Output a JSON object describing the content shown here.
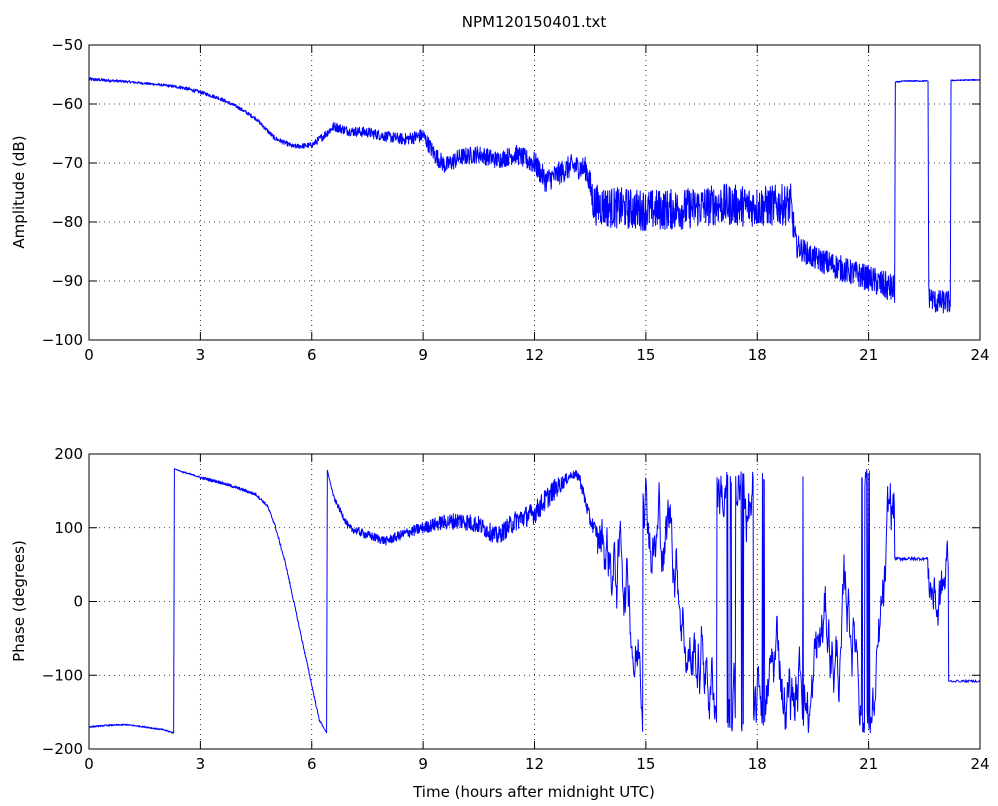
{
  "figure": {
    "title": "NPM120150401.txt",
    "line_color": "#0000ff",
    "axes_color": "#000000",
    "background": "#ffffff"
  },
  "chart_data": [
    {
      "type": "line",
      "title": "NPM120150401.txt",
      "xlabel": "",
      "ylabel": "Amplitude (dB)",
      "xlim": [
        0,
        24
      ],
      "ylim": [
        -100,
        -50
      ],
      "xticks": [
        0,
        3,
        6,
        9,
        12,
        15,
        18,
        21,
        24
      ],
      "yticks": [
        -100,
        -90,
        -80,
        -70,
        -60,
        -50
      ],
      "xtick_labels": [
        "0",
        "3",
        "6",
        "9",
        "12",
        "15",
        "18",
        "21",
        "24"
      ],
      "ytick_labels": [
        "−100",
        "−90",
        "−80",
        "−70",
        "−60",
        "−50"
      ],
      "grid": true,
      "series": [
        {
          "color": "#0000ff",
          "x": [
            0,
            1,
            2,
            2.5,
            3,
            3.5,
            4,
            4.5,
            5,
            5.5,
            6,
            6.3,
            6.6,
            7,
            7.5,
            8,
            8.5,
            9,
            9.3,
            9.6,
            10,
            10.5,
            11,
            11.5,
            11.8,
            12,
            12.3,
            12.6,
            13,
            13.4,
            13.6,
            14,
            15,
            16,
            17,
            18,
            18.9,
            19.05,
            19.5,
            20,
            20.5,
            21,
            21.3,
            21.7,
            21.72,
            21.85,
            22,
            22.6,
            22.62,
            22.8,
            23.2,
            23.22,
            24
          ],
          "y": [
            -55.8,
            -56.2,
            -56.8,
            -57.2,
            -58,
            -59,
            -60.5,
            -62.5,
            -65.8,
            -67.2,
            -67,
            -65.5,
            -63.8,
            -64.6,
            -64.8,
            -65.5,
            -66,
            -65.3,
            -68.5,
            -70.5,
            -69,
            -68.5,
            -69.5,
            -68.5,
            -69.5,
            -70,
            -73,
            -72,
            -70.5,
            -71,
            -77,
            -77.5,
            -78,
            -77.8,
            -77,
            -77.4,
            -77,
            -84,
            -86,
            -87.2,
            -88.5,
            -89.5,
            -90.5,
            -91.5,
            -56.3,
            -56.2,
            -56.1,
            -56.1,
            -92.5,
            -93.5,
            -93.6,
            -56,
            -55.9
          ],
          "noise": [
            0.3,
            0.2,
            0.2,
            0.3,
            0.3,
            0.3,
            0.3,
            0.3,
            0.4,
            0.4,
            0.5,
            0.7,
            0.8,
            0.8,
            0.9,
            0.9,
            1,
            1.2,
            1.5,
            1.5,
            1.5,
            1.5,
            1.5,
            1.6,
            1.8,
            2,
            2,
            2,
            2,
            2,
            3.5,
            3.5,
            3.5,
            3.5,
            3.5,
            3.5,
            3.5,
            2,
            2,
            2.2,
            2.2,
            2.2,
            2.5,
            2.5,
            0.1,
            0.1,
            0.1,
            0.1,
            2,
            2,
            2,
            0.1,
            0.1
          ]
        }
      ]
    },
    {
      "type": "line",
      "title": "",
      "xlabel": "Time (hours after midnight UTC)",
      "ylabel": "Phase (degrees)",
      "xlim": [
        0,
        24
      ],
      "ylim": [
        -200,
        200
      ],
      "xticks": [
        0,
        3,
        6,
        9,
        12,
        15,
        18,
        21,
        24
      ],
      "yticks": [
        -200,
        -100,
        0,
        100,
        200
      ],
      "xtick_labels": [
        "0",
        "3",
        "6",
        "9",
        "12",
        "15",
        "18",
        "21",
        "24"
      ],
      "ytick_labels": [
        "−200",
        "−100",
        "0",
        "100",
        "200"
      ],
      "grid": true,
      "series": [
        {
          "color": "#0000ff",
          "x": [
            0,
            0.5,
            1,
            1.5,
            2,
            2.28,
            2.3,
            2.5,
            2.9,
            3,
            3.5,
            4,
            4.5,
            4.8,
            5,
            5.3,
            5.6,
            5.9,
            6.2,
            6.4,
            6.42,
            6.6,
            7,
            7.5,
            8,
            8.5,
            9,
            9.5,
            10,
            10.5,
            11,
            11.5,
            12,
            12.5,
            13,
            13.2,
            13.5,
            13.7
          ],
          "y": [
            -170,
            -168,
            -167,
            -170,
            -174,
            -178,
            180,
            176,
            170,
            168,
            162,
            154,
            145,
            130,
            105,
            50,
            -20,
            -90,
            -160,
            -178,
            178,
            140,
            100,
            90,
            82,
            92,
            100,
            107,
            110,
            104,
            88,
            110,
            120,
            150,
            172,
            170,
            110,
            92
          ],
          "noise": [
            1,
            1,
            1,
            1,
            1,
            1,
            0,
            1,
            1,
            2,
            2,
            2,
            2,
            2,
            2,
            2,
            2,
            2,
            2,
            0,
            0,
            3,
            5,
            6,
            6,
            7,
            8,
            10,
            12,
            12,
            12,
            14,
            15,
            15,
            5,
            8,
            10,
            10
          ]
        }
      ]
    }
  ]
}
